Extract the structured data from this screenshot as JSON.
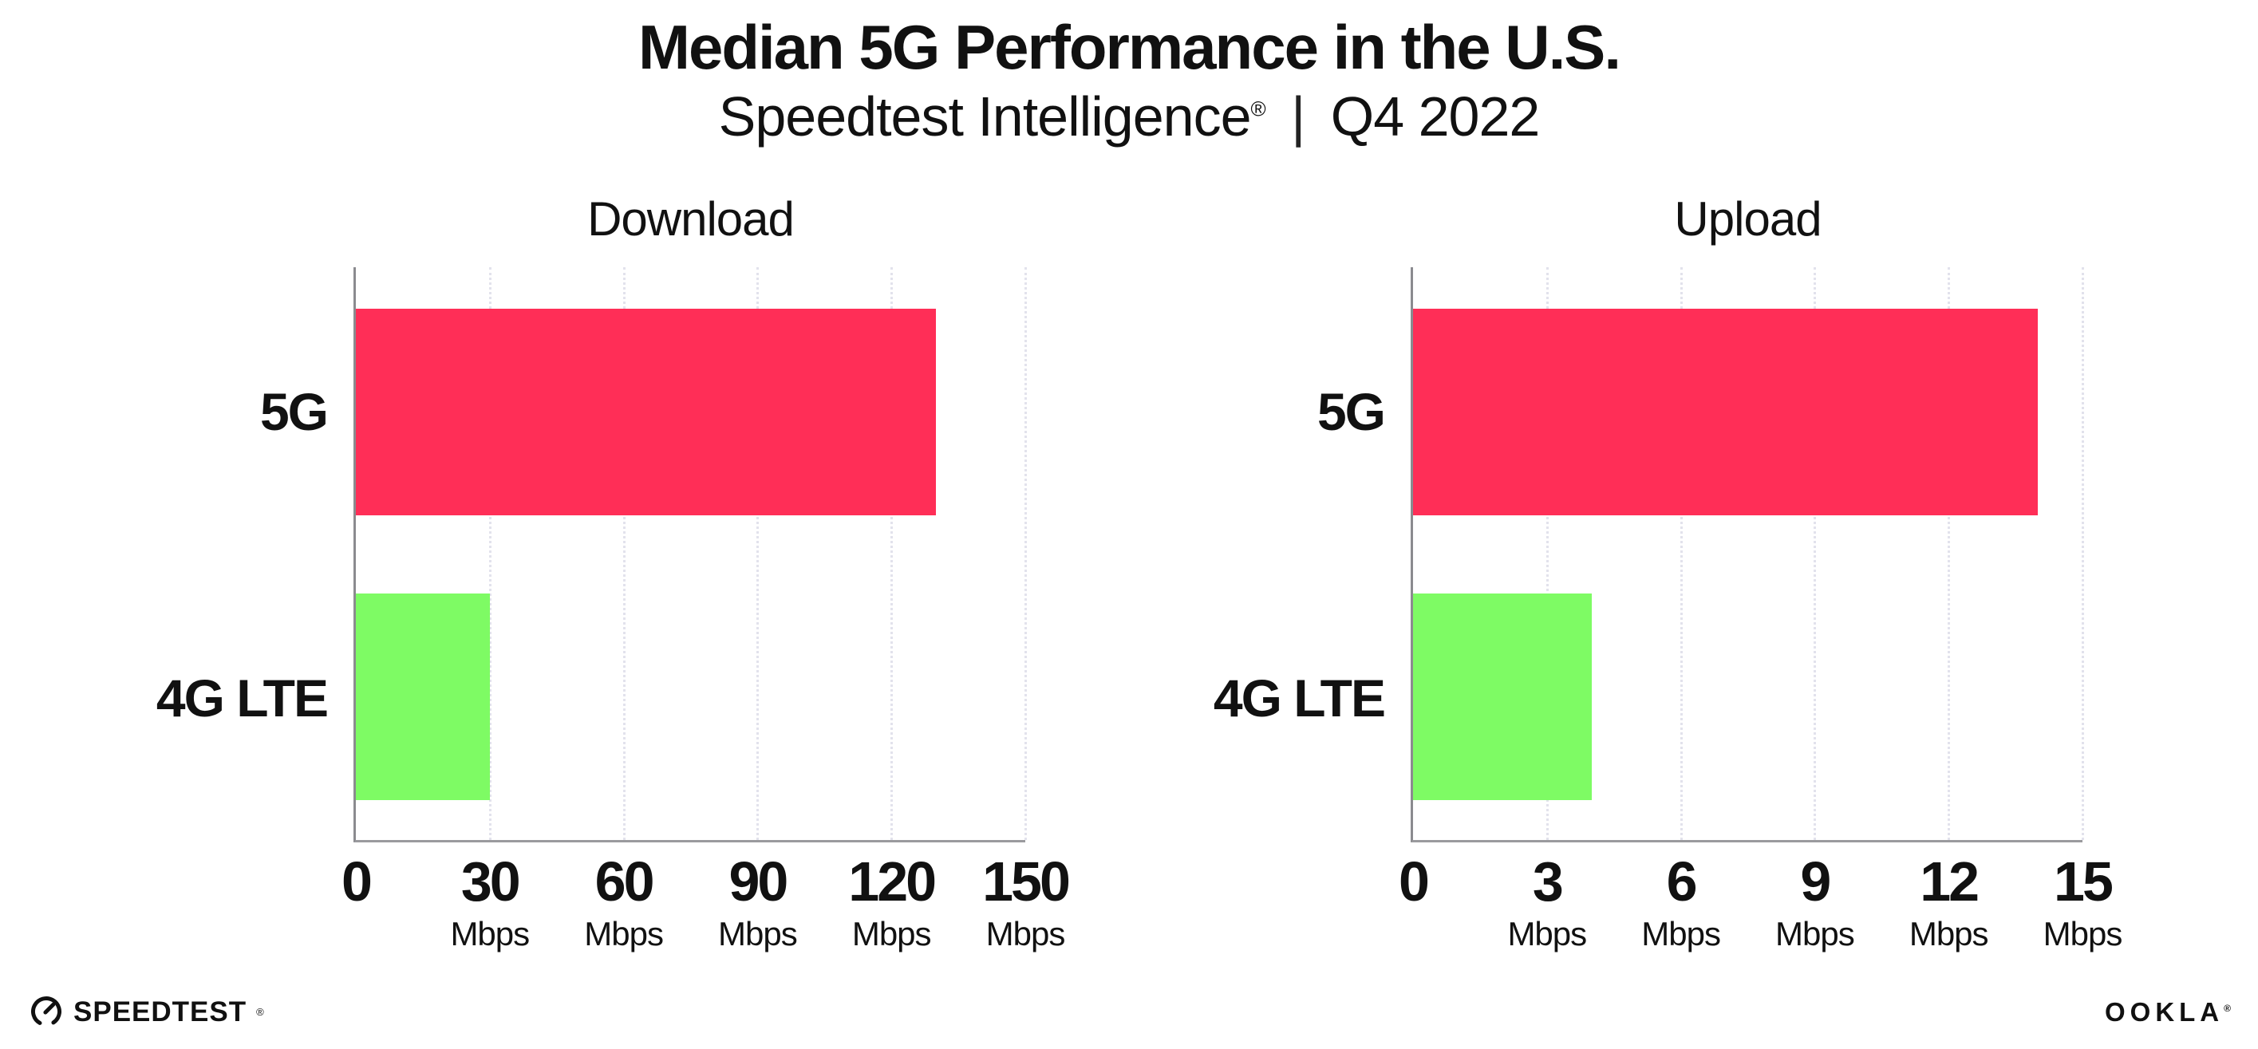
{
  "header": {
    "title": "Median 5G Performance in the U.S.",
    "subtitle_brand": "Speedtest Intelligence",
    "subtitle_reg": "®",
    "subtitle_separator": "|",
    "subtitle_period": "Q4 2022"
  },
  "chart_data": [
    {
      "type": "bar",
      "orientation": "horizontal",
      "title": "Download",
      "categories": [
        "5G",
        "4G LTE"
      ],
      "values": [
        130,
        30
      ],
      "unit": "Mbps",
      "xlim": [
        0,
        150
      ],
      "xticks": [
        0,
        30,
        60,
        90,
        120,
        150
      ],
      "bar_colors": [
        "#ff2e57",
        "#7efb64"
      ],
      "grid": "vertical-dotted",
      "legend": "none"
    },
    {
      "type": "bar",
      "orientation": "horizontal",
      "title": "Upload",
      "categories": [
        "5G",
        "4G LTE"
      ],
      "values": [
        14,
        4
      ],
      "unit": "Mbps",
      "xlim": [
        0,
        15
      ],
      "xticks": [
        0,
        3,
        6,
        9,
        12,
        15
      ],
      "bar_colors": [
        "#ff2e57",
        "#7efb64"
      ],
      "grid": "vertical-dotted",
      "legend": "none"
    }
  ],
  "footer": {
    "speedtest_text": "SPEEDTEST",
    "speedtest_reg": "®",
    "ookla_text": "OOKLA",
    "ookla_reg": "®"
  },
  "colors": {
    "bar_5g": "#ff2e57",
    "bar_4g_lte": "#7efb64",
    "spine": "#8b8b8f",
    "axis_line": "#9a9a9e",
    "gridline": "#e2e2ec",
    "text": "#111111",
    "background": "#ffffff"
  }
}
